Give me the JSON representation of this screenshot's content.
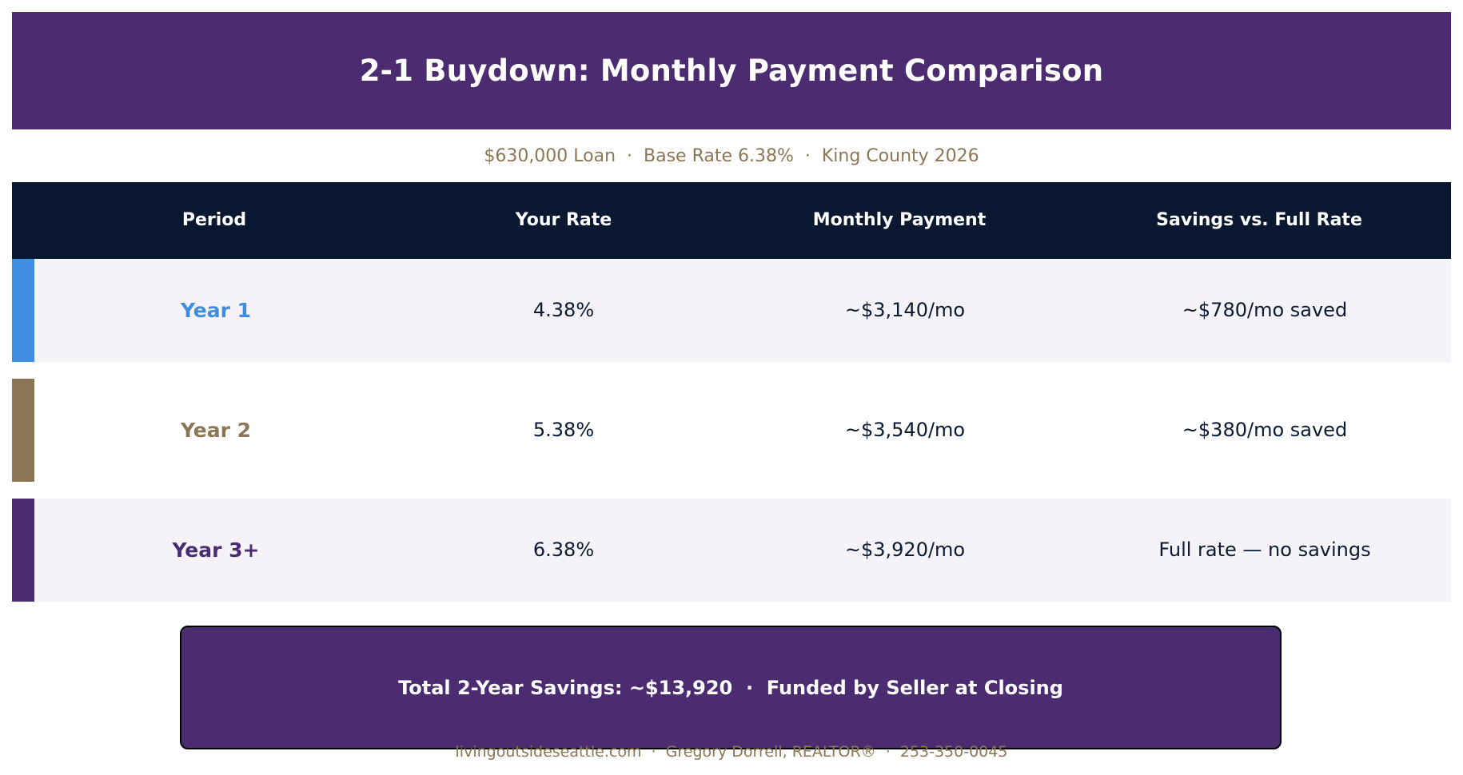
{
  "colors": {
    "header_bg": "#4b2c71",
    "table_head_bg": "#0a1730",
    "accent_tan": "#8b7755",
    "year1_blue": "#3f8ee0",
    "year3_purple": "#4b2c71",
    "row_shaded_bg": "#f5f3f8",
    "row_plain_bg": "#ffffff",
    "summary_bg": "#4b2c71",
    "text_dark": "#0a1a33"
  },
  "title": "2-1 Buydown: Monthly Payment Comparison",
  "subtitle": "$630,000 Loan  ·  Base Rate 6.38%  ·  King County 2026",
  "table": {
    "headers": [
      "Period",
      "Your Rate",
      "Monthly Payment",
      "Savings vs. Full Rate"
    ],
    "rows": [
      {
        "period": "Year 1",
        "rate": "4.38%",
        "payment": "~$3,140/mo",
        "savings": "~$780/mo saved",
        "accent_color": "#3f8ee0",
        "label_color": "#3f8ee0",
        "shaded": true
      },
      {
        "period": "Year 2",
        "rate": "5.38%",
        "payment": "~$3,540/mo",
        "savings": "~$380/mo saved",
        "accent_color": "#8b7755",
        "label_color": "#8b7755",
        "shaded": false
      },
      {
        "period": "Year 3+",
        "rate": "6.38%",
        "payment": "~$3,920/mo",
        "savings": "Full rate — no savings",
        "accent_color": "#4b2c71",
        "label_color": "#4b2c71",
        "shaded": true
      }
    ]
  },
  "summary": "Total 2-Year Savings: ~$13,920  ·  Funded by Seller at Closing",
  "footer": "livingoutsideseattle.com  ·  Gregory Dorrell, REALTOR®  ·  253-350-0045"
}
